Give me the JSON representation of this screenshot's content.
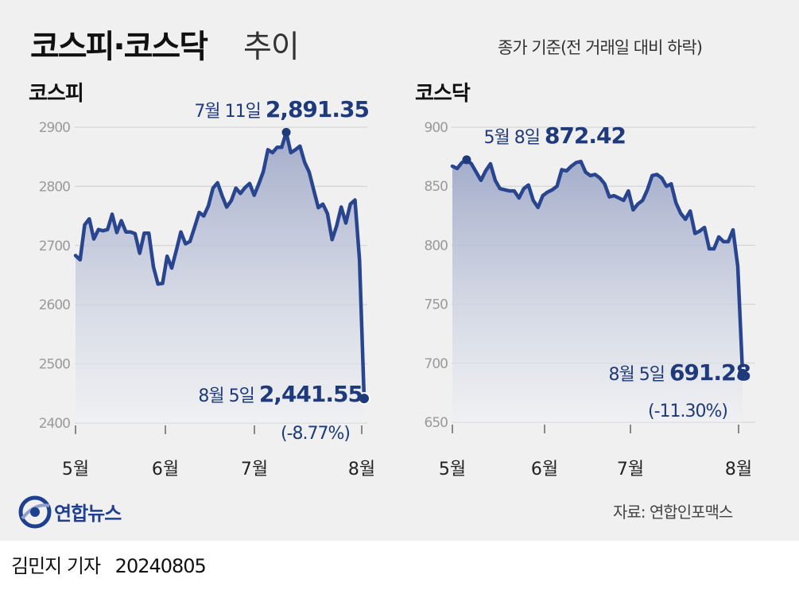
{
  "header": {
    "title": "코스피·코스닥",
    "title_suffix": "추이",
    "basis_note": "종가 기준(전 거래일 대비 하락)"
  },
  "footer": {
    "logo_text": "연합뉴스",
    "source": "자료: 연합인포맥스",
    "author": "김민지 기자",
    "date": "20240805"
  },
  "colors": {
    "line": "#2a4590",
    "area_top": "#9fa9c8",
    "area_bottom": "#eef0f4",
    "label_dark": "#1f3a7a",
    "grid": "#cfcfcf",
    "tick": "#9a9a9a"
  },
  "chart_data": [
    {
      "type": "area",
      "title": "코스피",
      "x_ticks": [
        "5월",
        "6월",
        "7월",
        "8월"
      ],
      "ylim": [
        2400,
        2900
      ],
      "y_ticks": [
        2400,
        2500,
        2600,
        2700,
        2800,
        2900
      ],
      "grid": true,
      "values": [
        2683,
        2676,
        2735,
        2745,
        2711,
        2727,
        2725,
        2727,
        2753,
        2722,
        2742,
        2723,
        2723,
        2720,
        2687,
        2721,
        2721,
        2664,
        2635,
        2636,
        2682,
        2662,
        2692,
        2723,
        2703,
        2707,
        2731,
        2756,
        2750,
        2767,
        2797,
        2806,
        2784,
        2765,
        2776,
        2797,
        2788,
        2798,
        2805,
        2785,
        2804,
        2825,
        2862,
        2857,
        2866,
        2866,
        2891.35,
        2857,
        2862,
        2868,
        2841,
        2824,
        2794,
        2764,
        2770,
        2754,
        2710,
        2733,
        2765,
        2738,
        2770,
        2777,
        2676,
        2441.55
      ],
      "annotations": {
        "high": {
          "date": "7월 11일",
          "value": "2,891.35"
        },
        "last": {
          "date": "8월 5일",
          "value": "2,441.55",
          "change": "(-8.77%)"
        }
      }
    },
    {
      "type": "area",
      "title": "코스닥",
      "x_ticks": [
        "5월",
        "6월",
        "7월",
        "8월"
      ],
      "ylim": [
        650,
        900
      ],
      "y_ticks": [
        650,
        700,
        750,
        800,
        850,
        900
      ],
      "grid": true,
      "values": [
        867,
        865,
        870,
        872.42,
        869,
        862,
        855,
        863,
        869,
        855,
        848,
        847,
        846,
        846,
        840,
        848,
        851,
        838,
        832,
        842,
        845,
        847,
        850,
        864,
        863,
        867,
        870,
        871,
        862,
        859,
        860,
        857,
        852,
        841,
        842,
        840,
        838,
        846,
        830,
        835,
        838,
        847,
        859,
        860,
        857,
        850,
        852,
        836,
        827,
        822,
        829,
        810,
        812,
        815,
        797,
        797,
        807,
        803,
        803,
        813,
        782,
        691.28
      ],
      "annotations": {
        "high": {
          "date": "5월 8일",
          "value": "872.42"
        },
        "last": {
          "date": "8월 5일",
          "value": "691.28",
          "change": "(-11.30%)"
        }
      }
    }
  ]
}
